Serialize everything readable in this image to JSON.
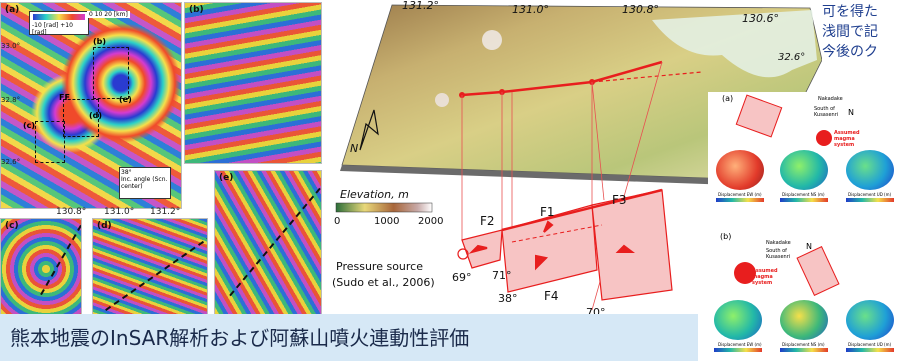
{
  "left_figure": {
    "main_label": "(a)",
    "sub_labels": [
      "(b)",
      "(c)",
      "(d)",
      "(e)"
    ],
    "inner_labels": [
      "(b)",
      "(c)",
      "(d)",
      "(e)"
    ],
    "lat_ticks": [
      "33.0°",
      "32.8°",
      "32.6°"
    ],
    "lon_ticks": [
      "130.8°",
      "131.0°",
      "131.2°"
    ],
    "scale_text": "0   10   20 [km]",
    "legend_text": "-10 [rad]   +10 [rad]",
    "ff_label": "FF",
    "inc_label": "Inc. angle (Scn. center)",
    "inc_value": "38°"
  },
  "center_figure": {
    "lon_ticks": [
      "131.2°",
      "131.0°",
      "130.8°",
      "130.6°"
    ],
    "lat_tick": "32.6°",
    "north": "N",
    "elevation_label": "Elevation, m",
    "elevation_ticks": [
      "0",
      "1000",
      "2000"
    ],
    "faults": [
      "F1",
      "F2",
      "F3",
      "F4"
    ],
    "angles": [
      "69°",
      "71°",
      "38°",
      "70°"
    ],
    "pressure_source": "Pressure source",
    "citation": "(Sudo et al., 2006)",
    "colors": {
      "fault_line": "#e81e1e",
      "fault_fill": "#f7c4c4",
      "banner": "#d6e8f6"
    }
  },
  "right_figure": {
    "label_a": "(a)",
    "label_b": "(b)",
    "nakadake": "Nakadake",
    "south_of_kusasenri": "South of Kusasenri",
    "assumed_magma": "Assumed magma system",
    "north": "N",
    "axis_labels": [
      "Displacement EW (m)",
      "Displacement NS (m)",
      "Displacement UD (m)"
    ]
  },
  "right_text_lines": [
    "可を得た",
    "浅間で記",
    "今後のク"
  ],
  "bottom_title": "熊本地震のInSAR解析および阿蘇山噴火連動性評価"
}
